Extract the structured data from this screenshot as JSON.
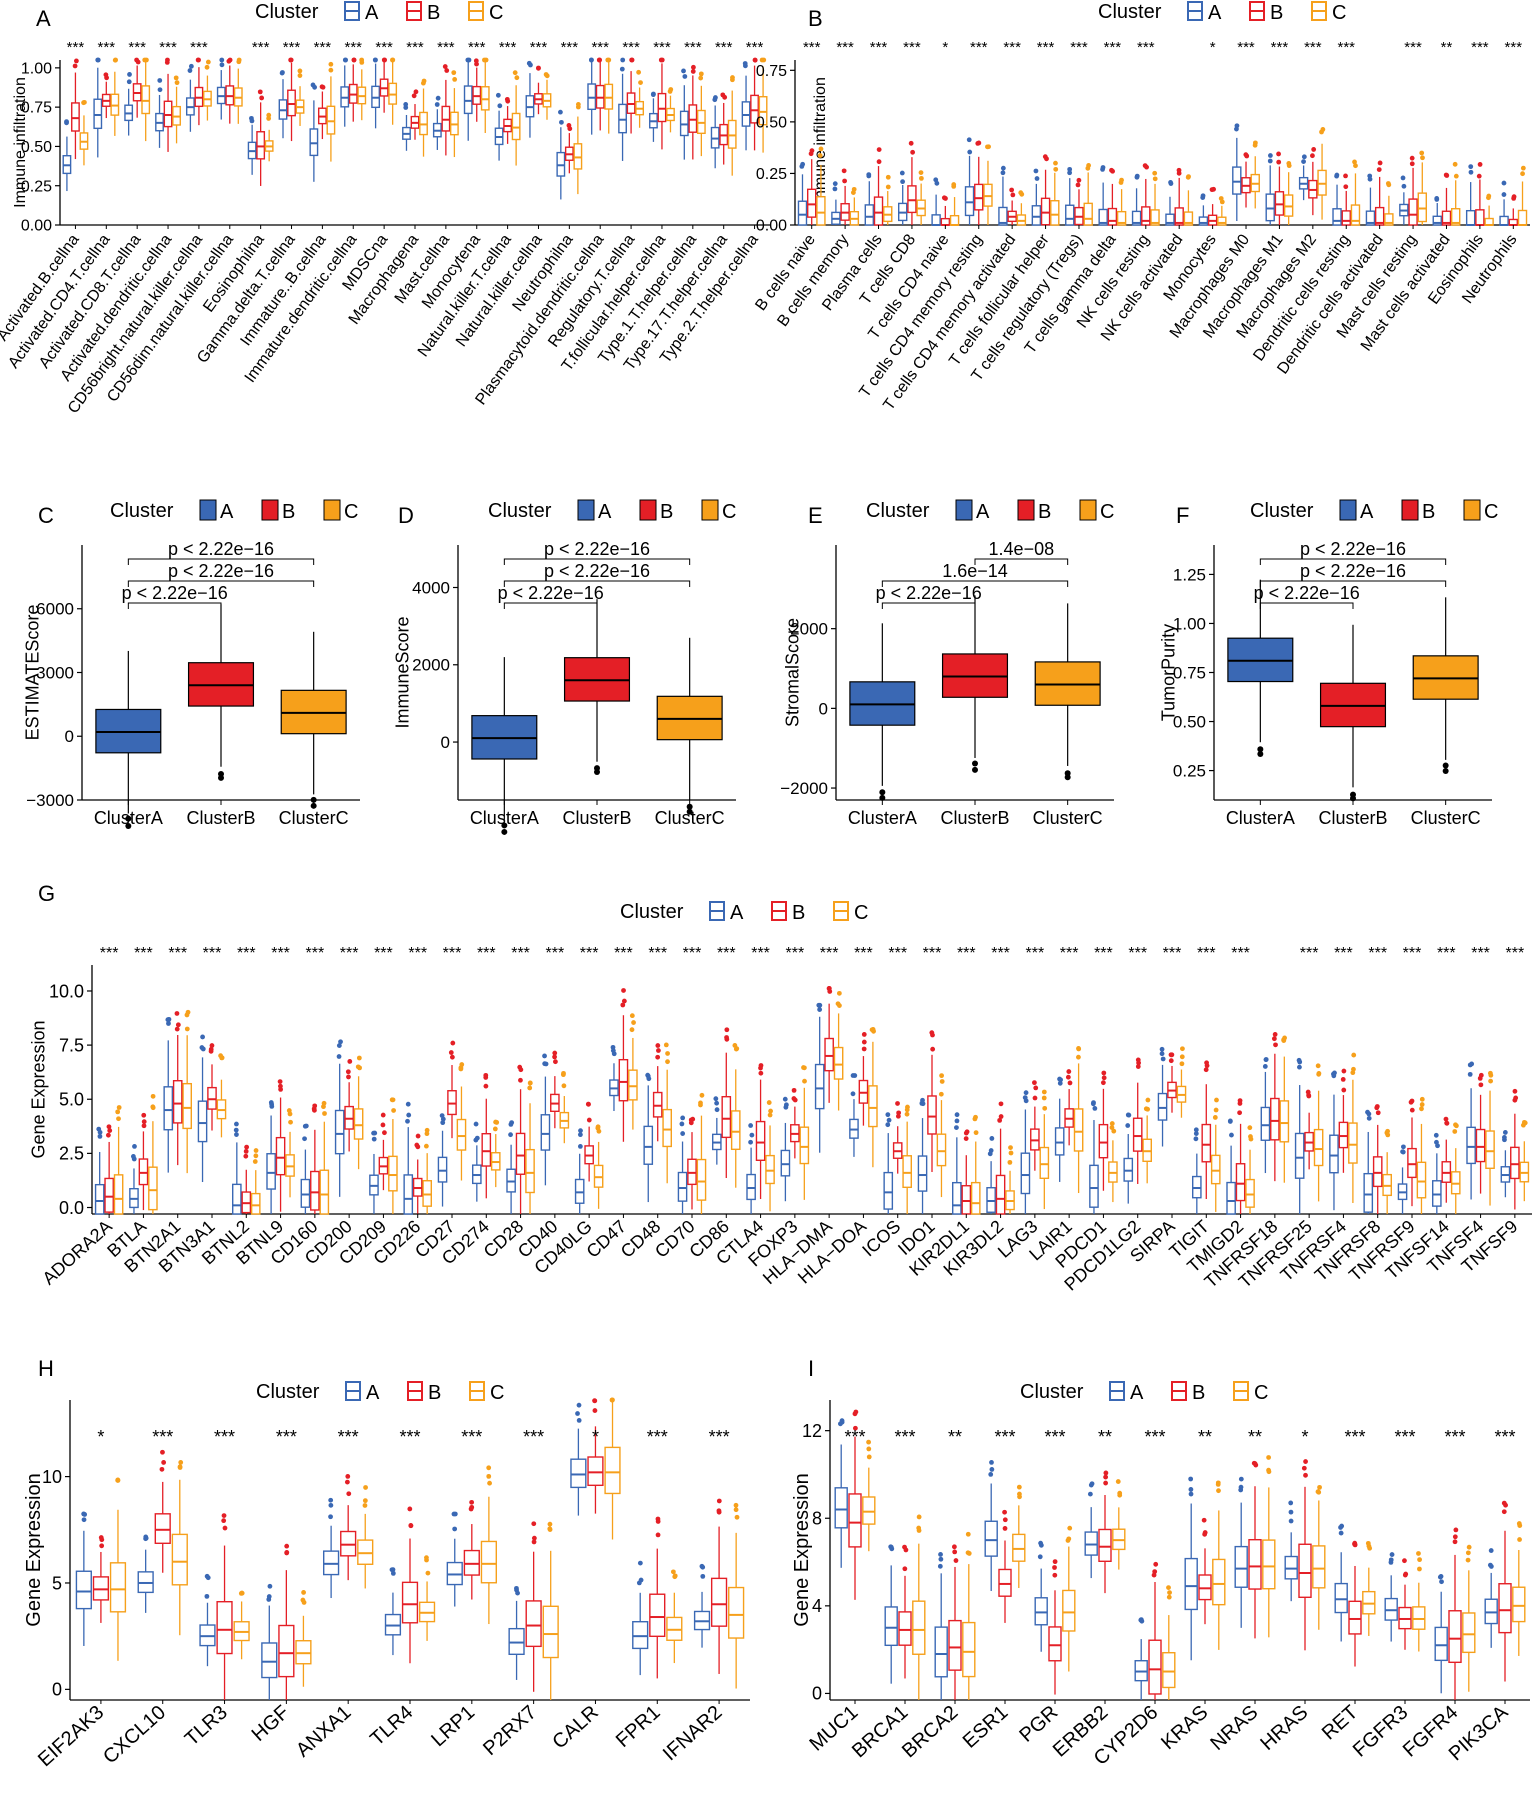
{
  "legend": {
    "title": "Cluster",
    "labels": [
      "A",
      "B",
      "C"
    ]
  },
  "colors": {
    "A": "#3a68b4",
    "B": "#e41f26",
    "C": "#f6a01b",
    "axis": "#000000",
    "text": "#000000"
  },
  "chart_data": [
    {
      "panel": "A",
      "type": "boxplot",
      "style": "outline",
      "ylabel": "Immune infiltration",
      "ylim": [
        0,
        1.05
      ],
      "yticks": [
        "0.00",
        "0.25",
        "0.50",
        "0.75",
        "1.00"
      ],
      "categories": [
        "Activated.B.cellna",
        "Activated.CD4.T.cellna",
        "Activated.CD8.T.cellna",
        "Activated.dendritic.cellna",
        "CD56bright.natural.killer.cellna",
        "CD56dim.natural.killer.cellna",
        "Eosinophilna",
        "Gamma.delta.T.cellna",
        "Immature..B.cellna",
        "Immature.dendritic.cellna",
        "MDSCna",
        "Macrophagena",
        "Mast.cellna",
        "Monocytena",
        "Natural.killer.T.cellna",
        "Natural.killer.cellna",
        "Neutrophilna",
        "Plasmacytoid.dendritic.cellna",
        "Regulatory.T.cellna",
        "T.follicular.helper.cellna",
        "Type.1.T.helper.cellna",
        "Type.17.T.helper.cellna",
        "Type.2.T.helper.cellna"
      ],
      "significance": [
        "***",
        "***",
        "***",
        "***",
        "***",
        "",
        "***",
        "***",
        "***",
        "***",
        "***",
        "***",
        "***",
        "***",
        "***",
        "***",
        "***",
        "***",
        "***",
        "***",
        "***",
        "***",
        "***"
      ],
      "medians": {
        "A": [
          0.38,
          0.7,
          0.71,
          0.65,
          0.75,
          0.82,
          0.47,
          0.73,
          0.52,
          0.81,
          0.81,
          0.58,
          0.6,
          0.79,
          0.56,
          0.75,
          0.38,
          0.81,
          0.67,
          0.66,
          0.64,
          0.55,
          0.7
        ],
        "B": [
          0.68,
          0.79,
          0.84,
          0.7,
          0.81,
          0.82,
          0.5,
          0.77,
          0.69,
          0.83,
          0.87,
          0.65,
          0.67,
          0.82,
          0.63,
          0.8,
          0.45,
          0.81,
          0.77,
          0.74,
          0.67,
          0.57,
          0.73
        ],
        "C": [
          0.53,
          0.76,
          0.79,
          0.69,
          0.8,
          0.81,
          0.5,
          0.75,
          0.66,
          0.82,
          0.83,
          0.64,
          0.64,
          0.8,
          0.62,
          0.79,
          0.43,
          0.81,
          0.74,
          0.7,
          0.65,
          0.57,
          0.72
        ]
      }
    },
    {
      "panel": "B",
      "type": "boxplot",
      "style": "outline",
      "ylabel": "Immune infiltration",
      "ylim": [
        0,
        0.8
      ],
      "yticks": [
        "0.00",
        "0.25",
        "0.50",
        "0.75"
      ],
      "categories": [
        "B cells naive",
        "B cells memory",
        "Plasma cells",
        "T cells CD8",
        "T cells CD4 naive",
        "T cells CD4 memory resting",
        "T cells CD4 memory activated",
        "T cells follicular helper",
        "T cells regulatory (Tregs)",
        "T cells gamma delta",
        "NK cells resting",
        "NK cells activated",
        "Monocytes",
        "Macrophages M0",
        "Macrophages M1",
        "Macrophages M2",
        "Dendritic cells resting",
        "Dendritic cells activated",
        "Mast cells resting",
        "Mast cells activated",
        "Eosinophils",
        "Neutrophils"
      ],
      "significance": [
        "***",
        "***",
        "***",
        "***",
        "*",
        "***",
        "***",
        "***",
        "***",
        "***",
        "***",
        "",
        "*",
        "***",
        "***",
        "***",
        "***",
        "",
        "***",
        "**",
        "***",
        "***"
      ],
      "medians": {
        "A": [
          0.05,
          0.03,
          0.04,
          0.06,
          0.0,
          0.11,
          0.01,
          0.04,
          0.03,
          0.01,
          0.01,
          0.01,
          0.01,
          0.21,
          0.08,
          0.2,
          0.02,
          0.01,
          0.07,
          0.01,
          0.0,
          0.0
        ],
        "B": [
          0.1,
          0.06,
          0.06,
          0.12,
          0.0,
          0.13,
          0.04,
          0.06,
          0.04,
          0.02,
          0.02,
          0.01,
          0.02,
          0.19,
          0.1,
          0.17,
          0.02,
          0.01,
          0.05,
          0.01,
          0.0,
          0.0
        ],
        "C": [
          0.06,
          0.03,
          0.05,
          0.08,
          0.0,
          0.14,
          0.02,
          0.05,
          0.03,
          0.01,
          0.01,
          0.01,
          0.01,
          0.2,
          0.09,
          0.2,
          0.02,
          0.01,
          0.08,
          0.01,
          0.0,
          0.0
        ]
      }
    },
    {
      "panel": "C",
      "type": "boxplot",
      "style": "filled",
      "ylabel": "ESTIMATEScore",
      "ylim": [
        -3000,
        9000
      ],
      "yticks": [
        "−3000",
        "0",
        "3000",
        "6000"
      ],
      "categories": [
        "ClusterA",
        "ClusterB",
        "ClusterC"
      ],
      "medians": [
        200,
        2400,
        1100
      ],
      "comparisons": [
        "p < 2.22e−16",
        "p < 2.22e−16",
        "p < 2.22e−16"
      ]
    },
    {
      "panel": "D",
      "type": "boxplot",
      "style": "filled",
      "ylabel": "ImmuneScore",
      "ylim": [
        -1500,
        5100
      ],
      "yticks": [
        "0",
        "2000",
        "4000"
      ],
      "categories": [
        "ClusterA",
        "ClusterB",
        "ClusterC"
      ],
      "medians": [
        100,
        1600,
        600
      ],
      "comparisons": [
        "p < 2.22e−16",
        "p < 2.22e−16",
        "p < 2.22e−16"
      ]
    },
    {
      "panel": "E",
      "type": "boxplot",
      "style": "filled",
      "ylabel": "StromalScore",
      "ylim": [
        -2300,
        4100
      ],
      "yticks": [
        "−2000",
        "0",
        "2000"
      ],
      "categories": [
        "ClusterA",
        "ClusterB",
        "ClusterC"
      ],
      "medians": [
        100,
        800,
        600
      ],
      "comparisons": [
        "p < 2.22e−16",
        "1.6e−14",
        "1.4e−08"
      ]
    },
    {
      "panel": "F",
      "type": "boxplot",
      "style": "filled",
      "ylabel": "TumorPurity",
      "ylim": [
        0.1,
        1.4
      ],
      "yticks": [
        "0.25",
        "0.50",
        "0.75",
        "1.00",
        "1.25"
      ],
      "categories": [
        "ClusterA",
        "ClusterB",
        "ClusterC"
      ],
      "medians": [
        0.81,
        0.58,
        0.72
      ],
      "comparisons": [
        "p < 2.22e−16",
        "p < 2.22e−16",
        "p < 2.22e−16"
      ]
    },
    {
      "panel": "G",
      "type": "boxplot",
      "style": "outline",
      "ylabel": "Gene Expression",
      "ylim": [
        -0.3,
        11.2
      ],
      "yticks": [
        "0.0",
        "2.5",
        "5.0",
        "7.5",
        "10.0"
      ],
      "categories": [
        "ADORA2A",
        "BTLA",
        "BTN2A1",
        "BTN3A1",
        "BTNL2",
        "BTNL9",
        "CD160",
        "CD200",
        "CD209",
        "CD226",
        "CD27",
        "CD274",
        "CD28",
        "CD40",
        "CD40LG",
        "CD47",
        "CD48",
        "CD70",
        "CD86",
        "CTLA4",
        "FOXP3",
        "HLA−DMA",
        "HLA−DOA",
        "ICOS",
        "IDO1",
        "KIR2DL1",
        "KIR3DL2",
        "LAG3",
        "LAIR1",
        "PDCD1",
        "PDCD1LG2",
        "SIRPA",
        "TIGIT",
        "TMIGD2",
        "TNFRSF18",
        "TNFRSF25",
        "TNFRSF4",
        "TNFRSF8",
        "TNFRSF9",
        "TNFSF14",
        "TNFSF4",
        "TNFSF9"
      ],
      "significance": [
        "***",
        "***",
        "***",
        "***",
        "***",
        "***",
        "***",
        "***",
        "***",
        "***",
        "***",
        "***",
        "***",
        "***",
        "***",
        "***",
        "***",
        "***",
        "***",
        "***",
        "***",
        "***",
        "***",
        "***",
        "***",
        "***",
        "***",
        "***",
        "***",
        "***",
        "***",
        "***",
        "***",
        "***",
        "",
        "***",
        "***",
        "***",
        "***",
        "***",
        "***",
        "***"
      ],
      "medians": {
        "A": [
          0.3,
          0.4,
          4.5,
          3.9,
          0.1,
          1.6,
          0.6,
          3.4,
          1.0,
          0.4,
          1.7,
          1.5,
          1.2,
          3.4,
          0.7,
          5.5,
          2.8,
          0.9,
          3.0,
          0.9,
          2.0,
          5.5,
          3.6,
          0.7,
          1.5,
          0.1,
          0.3,
          1.5,
          3.0,
          0.9,
          1.7,
          4.6,
          0.9,
          0.3,
          3.8,
          2.3,
          2.4,
          0.6,
          0.7,
          0.6,
          2.8,
          1.5
        ],
        "B": [
          0.5,
          1.6,
          4.8,
          5.0,
          0.2,
          2.3,
          0.7,
          4.1,
          1.9,
          0.9,
          4.8,
          2.6,
          2.4,
          4.8,
          2.4,
          5.8,
          4.7,
          1.6,
          4.1,
          3.0,
          3.4,
          7.0,
          5.3,
          2.6,
          4.2,
          0.3,
          0.4,
          3.1,
          4.1,
          3.0,
          3.3,
          5.4,
          2.9,
          1.1,
          4.0,
          3.0,
          3.3,
          1.6,
          2.0,
          1.6,
          2.8,
          2.0
        ],
        "C": [
          0.4,
          0.8,
          4.6,
          4.5,
          0.1,
          1.9,
          0.6,
          3.8,
          1.5,
          0.6,
          3.3,
          2.1,
          1.6,
          4.0,
          1.4,
          5.6,
          3.6,
          1.2,
          3.5,
          1.7,
          2.8,
          6.6,
          4.6,
          1.6,
          2.6,
          0.2,
          0.3,
          2.0,
          3.5,
          1.6,
          2.6,
          5.2,
          1.7,
          0.6,
          3.9,
          2.7,
          2.9,
          1.0,
          1.2,
          1.1,
          2.6,
          1.6
        ]
      }
    },
    {
      "panel": "H",
      "type": "boxplot",
      "style": "outline",
      "ylabel": "Gene Expression",
      "ylim": [
        -0.5,
        13.6
      ],
      "yticks": [
        "0",
        "5",
        "10"
      ],
      "categories": [
        "EIF2AK3",
        "CXCL10",
        "TLR3",
        "HGF",
        "ANXA1",
        "TLR4",
        "LRP1",
        "P2RX7",
        "CALR",
        "FPR1",
        "IFNAR2"
      ],
      "significance": [
        "*",
        "***",
        "***",
        "***",
        "***",
        "***",
        "***",
        "***",
        "*",
        "***",
        "***"
      ],
      "medians": {
        "A": [
          4.6,
          5.0,
          2.5,
          1.3,
          5.9,
          3.0,
          5.4,
          2.2,
          10.1,
          2.5,
          3.2
        ],
        "B": [
          4.7,
          7.5,
          2.8,
          1.7,
          6.8,
          4.0,
          5.9,
          3.0,
          10.2,
          3.4,
          4.0
        ],
        "C": [
          4.7,
          6.0,
          2.7,
          1.7,
          6.4,
          3.6,
          5.9,
          2.6,
          10.2,
          2.8,
          3.5
        ]
      }
    },
    {
      "panel": "I",
      "type": "boxplot",
      "style": "outline",
      "ylabel": "Gene Expression",
      "ylim": [
        -0.3,
        13.4
      ],
      "yticks": [
        "0",
        "4",
        "8",
        "12"
      ],
      "categories": [
        "MUC1",
        "BRCA1",
        "BRCA2",
        "ESR1",
        "PGR",
        "ERBB2",
        "CYP2D6",
        "KRAS",
        "NRAS",
        "HRAS",
        "RET",
        "FGFR3",
        "FGFR4",
        "PIK3CA"
      ],
      "significance": [
        "***",
        "***",
        "**",
        "***",
        "***",
        "**",
        "***",
        "**",
        "**",
        "*",
        "***",
        "***",
        "***",
        "***"
      ],
      "medians": {
        "A": [
          8.4,
          3.0,
          1.8,
          7.0,
          3.7,
          6.8,
          1.0,
          4.9,
          5.7,
          5.7,
          4.3,
          3.8,
          2.2,
          3.7
        ],
        "B": [
          7.8,
          2.9,
          2.1,
          5.0,
          2.2,
          6.7,
          1.1,
          4.8,
          5.8,
          5.5,
          3.4,
          3.4,
          2.5,
          3.8
        ],
        "C": [
          8.3,
          2.9,
          1.9,
          6.6,
          3.7,
          7.0,
          1.0,
          5.0,
          5.8,
          5.7,
          4.1,
          3.4,
          2.7,
          4.0
        ]
      }
    }
  ]
}
